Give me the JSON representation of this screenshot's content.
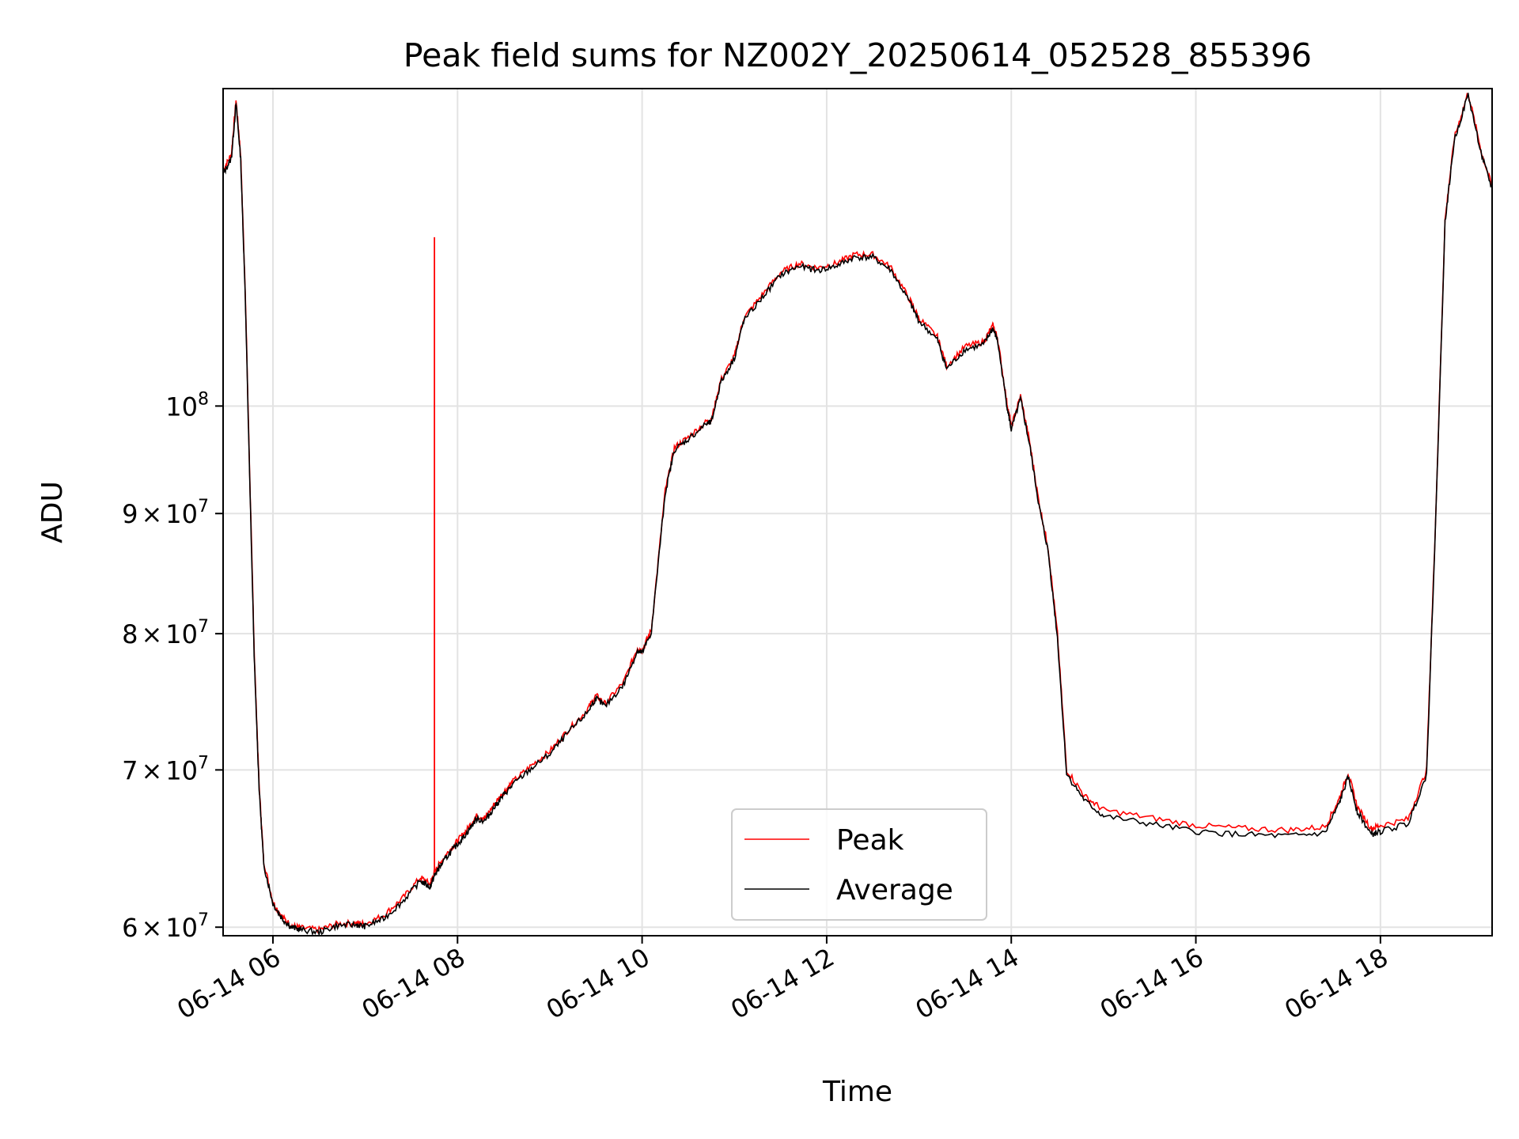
{
  "chart_data": {
    "type": "line",
    "title": "Peak field sums for NZ002Y_20250614_052528_855396",
    "xlabel": "Time",
    "ylabel": "ADU",
    "x_unit": "hours of 2025-06-14 (date axis)",
    "xlim": [
      5.46,
      19.21
    ],
    "ylim": [
      59500000,
      136500000
    ],
    "y_scale": "log",
    "grid": true,
    "legend": "bottom-center",
    "x_ticks": [
      {
        "value": 6,
        "label": "06-14 06"
      },
      {
        "value": 8,
        "label": "06-14 08"
      },
      {
        "value": 10,
        "label": "06-14 10"
      },
      {
        "value": 12,
        "label": "06-14 12"
      },
      {
        "value": 14,
        "label": "06-14 14"
      },
      {
        "value": 16,
        "label": "06-14 16"
      },
      {
        "value": 18,
        "label": "06-14 18"
      }
    ],
    "y_ticks": [
      {
        "value": 60000000,
        "mantissa": "6",
        "times": "×",
        "base": "10",
        "exp": "7"
      },
      {
        "value": 70000000,
        "mantissa": "7",
        "times": "×",
        "base": "10",
        "exp": "7"
      },
      {
        "value": 80000000,
        "mantissa": "8",
        "times": "×",
        "base": "10",
        "exp": "7"
      },
      {
        "value": 90000000,
        "mantissa": "9",
        "times": "×",
        "base": "10",
        "exp": "7"
      },
      {
        "value": 100000000,
        "mantissa": "",
        "times": "",
        "base": "10",
        "exp": "8"
      }
    ],
    "x": [
      5.46,
      5.55,
      5.6,
      5.65,
      5.7,
      5.75,
      5.8,
      5.85,
      5.9,
      6.0,
      6.1,
      6.2,
      6.3,
      6.5,
      6.7,
      6.9,
      7.0,
      7.2,
      7.4,
      7.6,
      7.7,
      7.75,
      7.8,
      7.9,
      8.0,
      8.1,
      8.2,
      8.3,
      8.4,
      8.5,
      8.6,
      8.8,
      9.0,
      9.2,
      9.4,
      9.5,
      9.6,
      9.8,
      9.95,
      10.0,
      10.1,
      10.25,
      10.35,
      10.5,
      10.7,
      10.75,
      10.85,
      11.0,
      11.1,
      11.3,
      11.5,
      11.7,
      11.9,
      12.1,
      12.3,
      12.5,
      12.7,
      12.9,
      13.0,
      13.2,
      13.3,
      13.5,
      13.7,
      13.8,
      13.85,
      13.95,
      14.0,
      14.1,
      14.2,
      14.3,
      14.4,
      14.5,
      14.6,
      14.8,
      15.0,
      15.5,
      16.0,
      16.5,
      17.0,
      17.4,
      17.55,
      17.65,
      17.75,
      17.9,
      18.0,
      18.3,
      18.5,
      18.6,
      18.7,
      18.8,
      18.95,
      19.1,
      19.21
    ],
    "series": [
      {
        "name": "Peak",
        "color": "#ff0000",
        "values": [
          126000000,
          128000000,
          135000000,
          128000000,
          112000000,
          93000000,
          78000000,
          69000000,
          64000000,
          61500000,
          60600000,
          60100000,
          59950000,
          59850000,
          60200000,
          60250000,
          60200000,
          60700000,
          61700000,
          63000000,
          62600000,
          63300000,
          63800000,
          64600000,
          65300000,
          66000000,
          66900000,
          66800000,
          67700000,
          68500000,
          69200000,
          70300000,
          71300000,
          72800000,
          74200000,
          75300000,
          74700000,
          76300000,
          78900000,
          78700000,
          80300000,
          92000000,
          96000000,
          97000000,
          98500000,
          98600000,
          102500000,
          105000000,
          109000000,
          111500000,
          114000000,
          115000000,
          114500000,
          115000000,
          116000000,
          116000000,
          114500000,
          111000000,
          109000000,
          107000000,
          104000000,
          106000000,
          106500000,
          108200000,
          107000000,
          100500000,
          98000000,
          101000000,
          96500000,
          91000000,
          87000000,
          80000000,
          70000000,
          68200000,
          67300000,
          66800000,
          66300000,
          66100000,
          66000000,
          66200000,
          68000000,
          69800000,
          67500000,
          66100000,
          66300000,
          66700000,
          70000000,
          90000000,
          120000000,
          130000000,
          136000000,
          128000000,
          124000000
        ]
      },
      {
        "name": "Average",
        "color": "#000000",
        "values": [
          125500000,
          127500000,
          134500000,
          127500000,
          111500000,
          92500000,
          77500000,
          68800000,
          63800000,
          61400000,
          60500000,
          60000000,
          59850000,
          59700000,
          60100000,
          60150000,
          60050000,
          60500000,
          61500000,
          62800000,
          62400000,
          63100000,
          63600000,
          64400000,
          65100000,
          65800000,
          66700000,
          66600000,
          67500000,
          68300000,
          69000000,
          70100000,
          71100000,
          72600000,
          74000000,
          75100000,
          74500000,
          76100000,
          78700000,
          78500000,
          80100000,
          91800000,
          95800000,
          96800000,
          98300000,
          98400000,
          102300000,
          104800000,
          108700000,
          111200000,
          113700000,
          114700000,
          114200000,
          114700000,
          115700000,
          115700000,
          114200000,
          110700000,
          108700000,
          106700000,
          103700000,
          105700000,
          106200000,
          107900000,
          106700000,
          100200000,
          97700000,
          100700000,
          96200000,
          90700000,
          86700000,
          79700000,
          69700000,
          67900000,
          66900000,
          66400000,
          65900000,
          65700000,
          65600000,
          65800000,
          67700000,
          69500000,
          67200000,
          65700000,
          65900000,
          66400000,
          69700000,
          89700000,
          119700000,
          129700000,
          135700000,
          127700000,
          123700000
        ]
      }
    ],
    "annotations": [
      {
        "series": "Peak",
        "type": "spike",
        "x": 7.75,
        "from": 63300000,
        "to": 118000000
      }
    ]
  }
}
